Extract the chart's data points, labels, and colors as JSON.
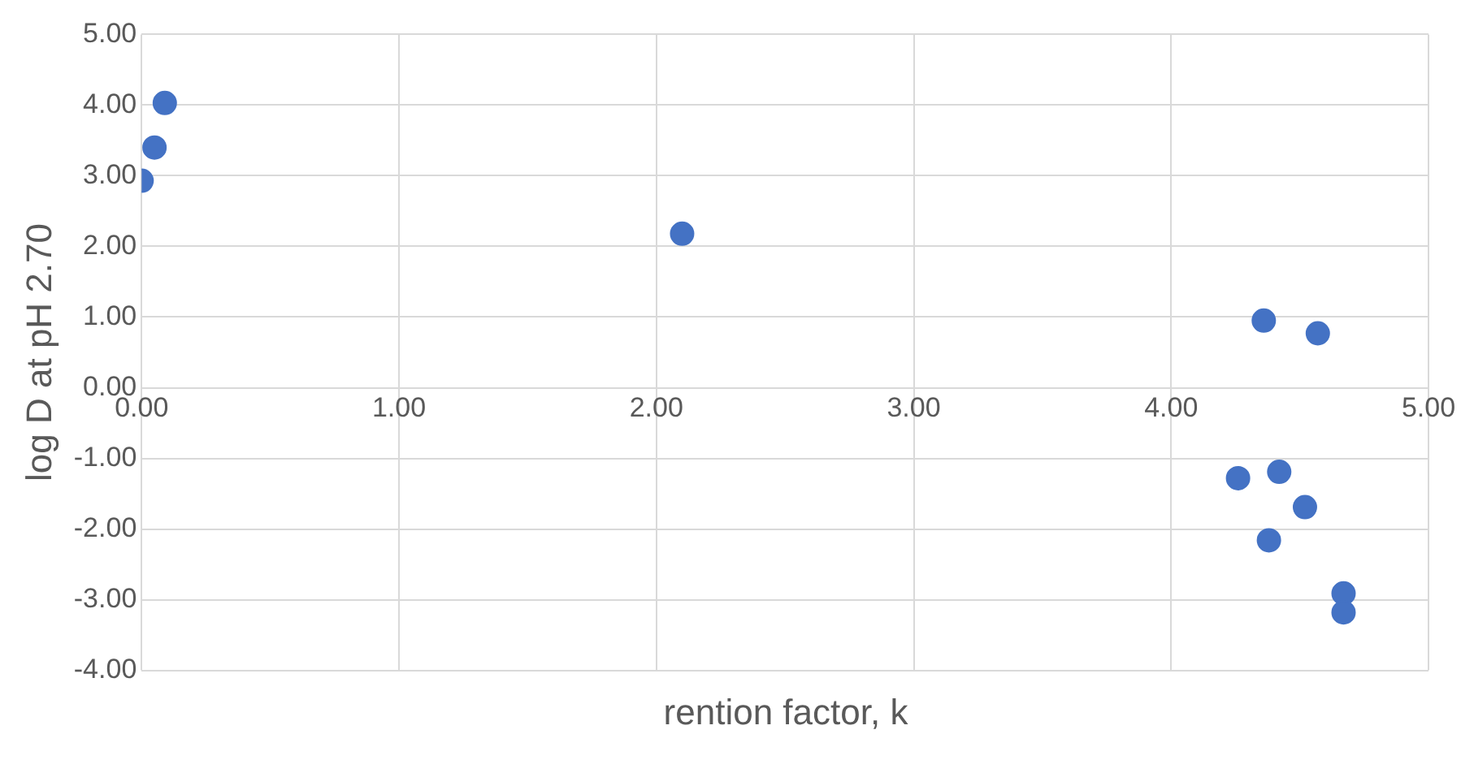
{
  "chart_data": {
    "type": "scatter",
    "xlabel": "rention factor, k",
    "ylabel": "log D at pH 2.70",
    "x": [
      0.0,
      0.05,
      0.09,
      2.1,
      4.36,
      4.57,
      4.26,
      4.42,
      4.52,
      4.38,
      4.67,
      4.67
    ],
    "series": [
      {
        "color": "#4472c4",
        "values": [
          2.93,
          3.4,
          4.03,
          2.18,
          0.95,
          0.77,
          -1.28,
          -1.19,
          -1.69,
          -2.16,
          -2.91,
          -3.18
        ]
      }
    ],
    "xlim": [
      0,
      5
    ],
    "xticks": [
      {
        "value": 0,
        "label": "0.00"
      },
      {
        "value": 1,
        "label": "1.00"
      },
      {
        "value": 2,
        "label": "2.00"
      },
      {
        "value": 3,
        "label": "3.00"
      },
      {
        "value": 4,
        "label": "4.00"
      },
      {
        "value": 5,
        "label": "5.00"
      }
    ],
    "ylim": [
      -4,
      5
    ],
    "yticks": [
      {
        "value": -4,
        "label": "-4.00"
      },
      {
        "value": -3,
        "label": "-3.00"
      },
      {
        "value": -2,
        "label": "-2.00"
      },
      {
        "value": -1,
        "label": "-1.00"
      },
      {
        "value": 0,
        "label": "0.00"
      },
      {
        "value": 1,
        "label": "1.00"
      },
      {
        "value": 2,
        "label": "2.00"
      },
      {
        "value": 3,
        "label": "3.00"
      },
      {
        "value": 4,
        "label": "4.00"
      },
      {
        "value": 5,
        "label": "5.00"
      }
    ],
    "grid": true,
    "legend": false,
    "marker": "circle"
  }
}
